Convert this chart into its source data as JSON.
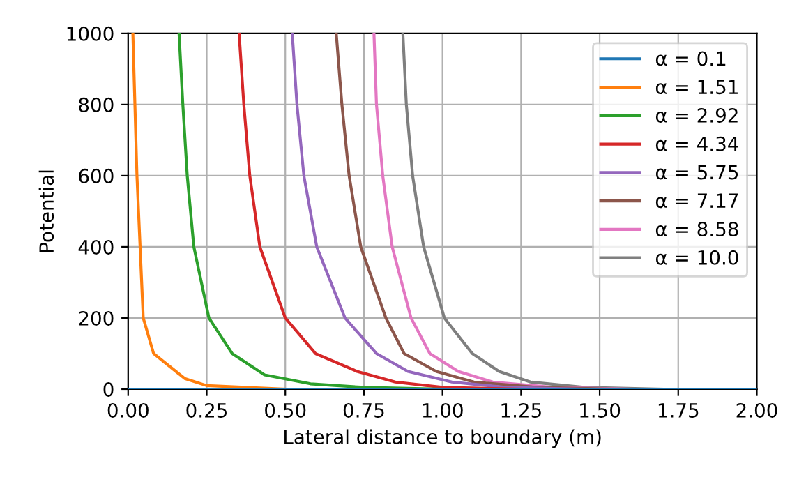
{
  "chart_data": {
    "type": "line",
    "xlabel": "Lateral distance to boundary (m)",
    "ylabel": "Potential",
    "xlim": [
      0,
      2
    ],
    "ylim": [
      0,
      1000
    ],
    "xticks": [
      {
        "value": 0,
        "label": "0.00"
      },
      0.25,
      {
        "value": 0.5,
        "label": "0.50"
      },
      0.75,
      {
        "value": 1,
        "label": "1.00"
      },
      1.25,
      {
        "value": 1.5,
        "label": "1.50"
      },
      1.75,
      {
        "value": 2,
        "label": "2.00"
      }
    ],
    "yticks": [
      0,
      200,
      400,
      600,
      800,
      1000
    ],
    "grid": true,
    "legend": "top right",
    "line_style": "solid",
    "series": [
      {
        "name": "α = 0.1",
        "color": "#1f77b4",
        "x": [
          0,
          2
        ],
        "values": [
          0,
          0
        ]
      },
      {
        "name": "α = 1.51",
        "color": "#ff7f0e",
        "x": [
          0.015,
          0.028,
          0.048,
          0.081,
          0.18,
          0.25,
          0.5
        ],
        "values": [
          1000,
          600,
          200,
          100,
          30,
          10,
          0
        ]
      },
      {
        "name": "α = 2.92",
        "color": "#2ca02c",
        "x": [
          0.162,
          0.174,
          0.188,
          0.209,
          0.257,
          0.331,
          0.434,
          0.58,
          0.75,
          1.0
        ],
        "values": [
          1000,
          800,
          600,
          400,
          200,
          100,
          40,
          15,
          5,
          0
        ]
      },
      {
        "name": "α = 4.34",
        "color": "#d62728",
        "x": [
          0.353,
          0.368,
          0.387,
          0.419,
          0.5,
          0.596,
          0.728,
          0.85,
          1.0,
          1.25
        ],
        "values": [
          1000,
          800,
          600,
          400,
          200,
          100,
          50,
          20,
          5,
          0
        ]
      },
      {
        "name": "α = 5.75",
        "color": "#9467bd",
        "x": [
          0.522,
          0.537,
          0.559,
          0.6,
          0.69,
          0.79,
          0.89,
          1.03,
          1.2,
          1.45
        ],
        "values": [
          1000,
          800,
          600,
          400,
          200,
          100,
          50,
          20,
          5,
          0
        ]
      },
      {
        "name": "α = 7.17",
        "color": "#8c564b",
        "x": [
          0.662,
          0.68,
          0.703,
          0.74,
          0.82,
          0.878,
          0.98,
          1.1,
          1.3,
          1.55
        ],
        "values": [
          1000,
          800,
          600,
          400,
          200,
          100,
          50,
          20,
          5,
          0
        ]
      },
      {
        "name": "α = 8.58",
        "color": "#e377c2",
        "x": [
          0.782,
          0.79,
          0.81,
          0.84,
          0.9,
          0.96,
          1.05,
          1.16,
          1.35,
          1.6
        ],
        "values": [
          1000,
          800,
          600,
          400,
          200,
          100,
          50,
          20,
          5,
          0
        ]
      },
      {
        "name": "α = 10.0",
        "color": "#7f7f7f",
        "x": [
          0.874,
          0.885,
          0.905,
          0.94,
          1.006,
          1.095,
          1.18,
          1.28,
          1.45,
          1.7
        ],
        "values": [
          1000,
          800,
          600,
          400,
          200,
          100,
          50,
          20,
          5,
          0
        ]
      }
    ]
  }
}
